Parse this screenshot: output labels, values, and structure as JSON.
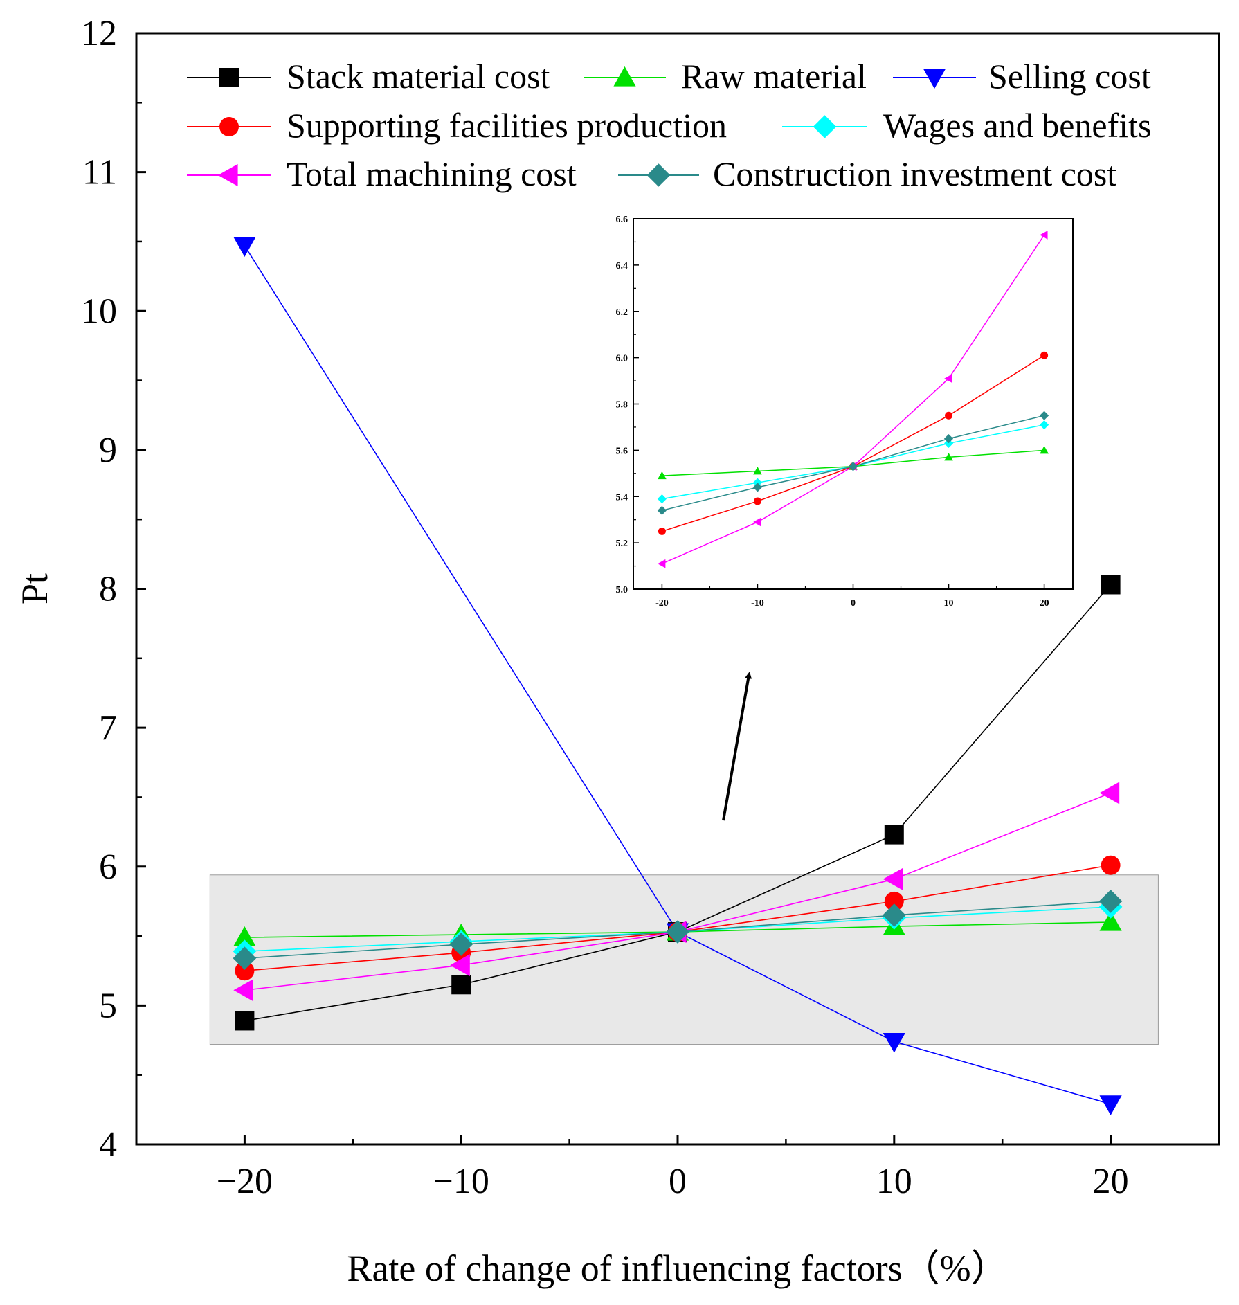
{
  "chart_data": {
    "type": "line",
    "xlabel": "Rate of change of influencing factors（%）",
    "ylabel": "Pt",
    "x": [
      -20,
      -10,
      0,
      10,
      20
    ],
    "xticks": [
      -20,
      -10,
      0,
      10,
      20
    ],
    "xtick_labels": [
      "−20",
      "−10",
      "0",
      "10",
      "20"
    ],
    "xlim": [
      -25,
      25
    ],
    "ylim": [
      4,
      12
    ],
    "yticks": [
      4,
      5,
      6,
      7,
      8,
      9,
      10,
      11,
      12
    ],
    "ytick_labels": [
      "4",
      "5",
      "6",
      "7",
      "8",
      "9",
      "10",
      "11",
      "12"
    ],
    "legend_position": "top",
    "series": [
      {
        "name": "Stack material cost",
        "color": "#000000",
        "marker": "square",
        "values": [
          4.89,
          5.15,
          5.53,
          6.23,
          8.03
        ]
      },
      {
        "name": "Raw material",
        "color": "#00e000",
        "marker": "triangle-up",
        "values": [
          5.49,
          5.51,
          5.53,
          5.57,
          5.6
        ]
      },
      {
        "name": "Selling cost",
        "color": "#0000ff",
        "marker": "triangle-down",
        "values": [
          10.47,
          null,
          5.53,
          4.74,
          4.29
        ]
      },
      {
        "name": "Supporting facilities production",
        "color": "#ff0000",
        "marker": "circle",
        "values": [
          5.25,
          5.38,
          5.53,
          5.75,
          6.01
        ]
      },
      {
        "name": "Wages and benefits",
        "color": "#00ffff",
        "marker": "diamond",
        "values": [
          5.39,
          5.46,
          5.53,
          5.63,
          5.71
        ]
      },
      {
        "name": "Total machining cost",
        "color": "#ff00ff",
        "marker": "triangle-left",
        "values": [
          5.11,
          5.29,
          5.53,
          5.91,
          6.53
        ]
      },
      {
        "name": "Construction investment cost",
        "color": "#2a8a8a",
        "marker": "diamond",
        "values": [
          5.34,
          5.44,
          5.53,
          5.65,
          5.75
        ]
      }
    ],
    "highlight_region": {
      "x": [
        -21.6,
        22.2
      ],
      "y": [
        4.72,
        5.94
      ]
    },
    "inset": {
      "xlim": [
        -23,
        23
      ],
      "ylim": [
        5.0,
        6.6
      ],
      "xticks": [
        -20,
        -10,
        0,
        10,
        20
      ],
      "xtick_labels": [
        "-20",
        "-10",
        "0",
        "10",
        "20"
      ],
      "yticks": [
        5.0,
        5.2,
        5.4,
        5.6,
        5.8,
        6.0,
        6.2,
        6.4,
        6.6
      ],
      "ytick_labels": [
        "5.0",
        "5.2",
        "5.4",
        "5.6",
        "5.8",
        "6.0",
        "6.2",
        "6.4",
        "6.6"
      ],
      "series_included": [
        "Raw material",
        "Supporting facilities production",
        "Wages and benefits",
        "Total machining cost",
        "Construction investment cost"
      ]
    }
  }
}
